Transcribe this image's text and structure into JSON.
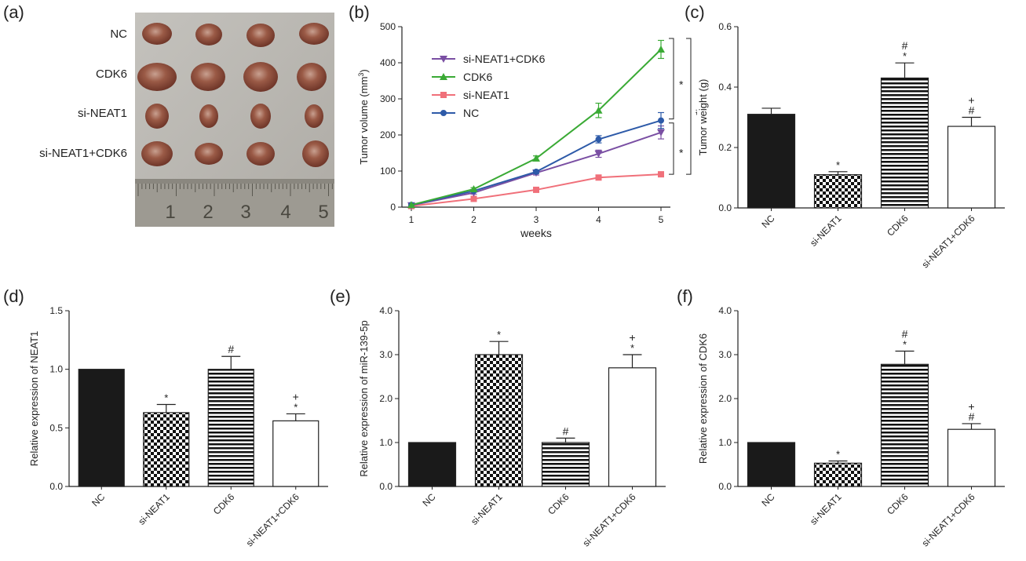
{
  "panel_labels": {
    "a": "(a)",
    "b": "(b)",
    "c": "(c)",
    "d": "(d)",
    "e": "(e)",
    "f": "(f)"
  },
  "photo": {
    "rows": [
      "NC",
      "CDK6",
      "si-NEAT1",
      "si-NEAT1+CDK6"
    ],
    "ruler_marks": [
      "1",
      "2",
      "3",
      "4",
      "5"
    ],
    "colors": {
      "background": "#b8b5b0",
      "tumor": "#8a4e3c",
      "ruler": "#9a9890"
    }
  },
  "chart_data": [
    {
      "id": "b",
      "type": "line",
      "xlabel": "weeks",
      "ylabel": "Tumor volume (mm3)",
      "x": [
        1,
        2,
        3,
        4,
        5
      ],
      "xlim": [
        1,
        5
      ],
      "ylim": [
        0,
        500
      ],
      "yticks": [
        0,
        100,
        200,
        300,
        400,
        500
      ],
      "series": [
        {
          "name": "si-NEAT1+CDK6",
          "color": "#7a4fa3",
          "marker": "triangle-down",
          "values": [
            5,
            40,
            95,
            148,
            207
          ],
          "errors": [
            2,
            4,
            6,
            10,
            18
          ]
        },
        {
          "name": "CDK6",
          "color": "#3aaa35",
          "marker": "triangle-up",
          "values": [
            6,
            50,
            135,
            268,
            437
          ],
          "errors": [
            2,
            4,
            7,
            20,
            25
          ]
        },
        {
          "name": "si-NEAT1",
          "color": "#f0707a",
          "marker": "square",
          "values": [
            3,
            23,
            48,
            82,
            91
          ],
          "errors": [
            1,
            2,
            3,
            4,
            4
          ]
        },
        {
          "name": "NC",
          "color": "#2d5aa8",
          "marker": "circle",
          "values": [
            6,
            45,
            98,
            188,
            240
          ],
          "errors": [
            2,
            3,
            5,
            10,
            22
          ]
        }
      ],
      "significance": [
        "*",
        "*",
        "#"
      ],
      "legend_position": "upper-left"
    },
    {
      "id": "c",
      "type": "bar",
      "ylabel": "Tumor weight (g)",
      "categories": [
        "NC",
        "si-NEAT1",
        "CDK6",
        "si-NEAT1+CDK6"
      ],
      "values": [
        0.31,
        0.11,
        0.43,
        0.27
      ],
      "errors": [
        0.02,
        0.01,
        0.05,
        0.03
      ],
      "ylim": [
        0.0,
        0.6
      ],
      "yticks": [
        "0.0",
        "0.2",
        "0.4",
        "0.6"
      ],
      "annotations": [
        [],
        [
          "*"
        ],
        [
          "#",
          "*"
        ],
        [
          "+",
          "#"
        ]
      ]
    },
    {
      "id": "d",
      "type": "bar",
      "ylabel": "Relative expression of NEAT1",
      "categories": [
        "NC",
        "si-NEAT1",
        "CDK6",
        "si-NEAT1+CDK6"
      ],
      "values": [
        1.0,
        0.63,
        1.0,
        0.56
      ],
      "errors": [
        0.0,
        0.07,
        0.11,
        0.06
      ],
      "ylim": [
        0.0,
        1.5
      ],
      "yticks": [
        "0.0",
        "0.5",
        "1.0",
        "1.5"
      ],
      "annotations": [
        [],
        [
          "*"
        ],
        [
          "#"
        ],
        [
          "+",
          "*"
        ]
      ]
    },
    {
      "id": "e",
      "type": "bar",
      "ylabel": "Relative expression of miR-139-5p",
      "categories": [
        "NC",
        "si-NEAT1",
        "CDK6",
        "si-NEAT1+CDK6"
      ],
      "values": [
        1.0,
        3.0,
        1.0,
        2.7
      ],
      "errors": [
        0.0,
        0.3,
        0.1,
        0.3
      ],
      "ylim": [
        0.0,
        4.0
      ],
      "yticks": [
        "0.0",
        "1.0",
        "2.0",
        "3.0",
        "4.0"
      ],
      "annotations": [
        [],
        [
          "*"
        ],
        [
          "#"
        ],
        [
          "+",
          "*"
        ]
      ]
    },
    {
      "id": "f",
      "type": "bar",
      "ylabel": "Relative expression of CDK6",
      "categories": [
        "NC",
        "si-NEAT1",
        "CDK6",
        "si-NEAT1+CDK6"
      ],
      "values": [
        1.0,
        0.53,
        2.78,
        1.3
      ],
      "errors": [
        0.0,
        0.05,
        0.3,
        0.13
      ],
      "ylim": [
        0.0,
        4.0
      ],
      "yticks": [
        "0.0",
        "1.0",
        "2.0",
        "3.0",
        "4.0"
      ],
      "annotations": [
        [],
        [
          "*"
        ],
        [
          "#",
          "*"
        ],
        [
          "+",
          "#"
        ]
      ]
    }
  ]
}
